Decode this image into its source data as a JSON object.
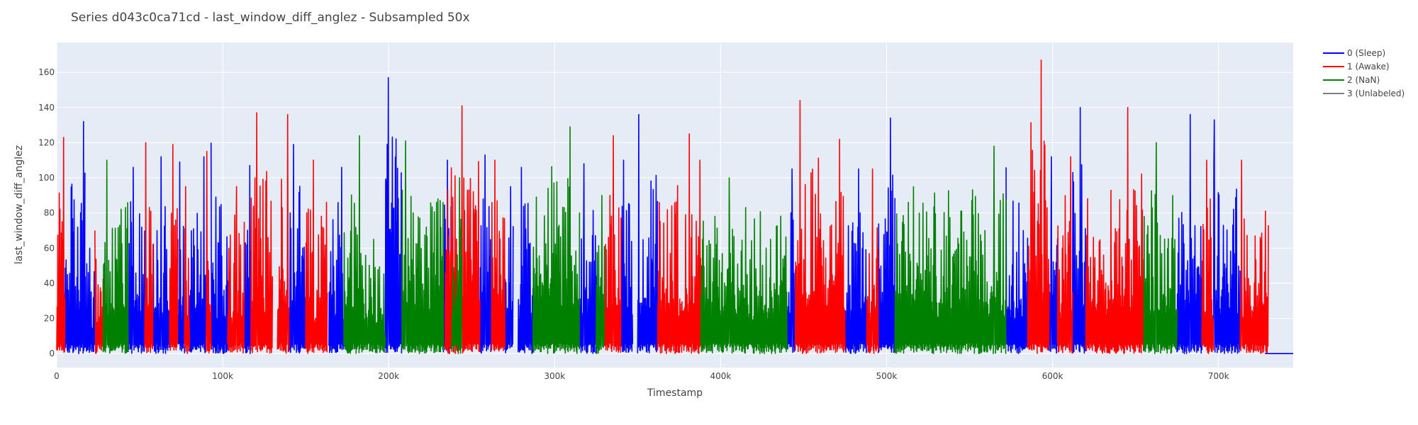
{
  "chart_data": {
    "type": "line",
    "title": "Series d043c0ca71cd - last_window_diff_anglez - Subsampled 50x",
    "xlabel": "Timestamp",
    "ylabel": "last_window_diff_anglez",
    "xlim": [
      0,
      745000
    ],
    "ylim": [
      -8,
      177
    ],
    "grid": true,
    "legend_position": "top-right, outside plot",
    "x_ticks": [
      {
        "value": 0,
        "label": "0"
      },
      {
        "value": 100000,
        "label": "100k"
      },
      {
        "value": 200000,
        "label": "200k"
      },
      {
        "value": 300000,
        "label": "300k"
      },
      {
        "value": 400000,
        "label": "400k"
      },
      {
        "value": 500000,
        "label": "500k"
      },
      {
        "value": 600000,
        "label": "600k"
      },
      {
        "value": 700000,
        "label": "700k"
      }
    ],
    "y_ticks": [
      {
        "value": 0,
        "label": "0"
      },
      {
        "value": 20,
        "label": "20"
      },
      {
        "value": 40,
        "label": "40"
      },
      {
        "value": 60,
        "label": "60"
      },
      {
        "value": 80,
        "label": "80"
      },
      {
        "value": 100,
        "label": "100"
      },
      {
        "value": 120,
        "label": "120"
      },
      {
        "value": 140,
        "label": "140"
      },
      {
        "value": 160,
        "label": "160"
      }
    ],
    "series": [
      {
        "name": "0 (Sleep)",
        "color": "#0000ff",
        "segments": [
          [
            5000,
            17000,
            132
          ],
          [
            17000,
            23000,
            60
          ],
          [
            43000,
            53000,
            106
          ],
          [
            58000,
            68000,
            112
          ],
          [
            73000,
            77000,
            109
          ],
          [
            80000,
            90000,
            112
          ],
          [
            93000,
            103000,
            120
          ],
          [
            113000,
            117000,
            107
          ],
          [
            140000,
            150000,
            119
          ],
          [
            164000,
            173000,
            106
          ],
          [
            198000,
            208000,
            157
          ],
          [
            233000,
            238000,
            110
          ],
          [
            255000,
            262000,
            113
          ],
          [
            270000,
            275000,
            95
          ],
          [
            278000,
            287000,
            106
          ],
          [
            315000,
            325000,
            108
          ],
          [
            340000,
            347000,
            110
          ],
          [
            350000,
            362000,
            136
          ],
          [
            440000,
            445000,
            105
          ],
          [
            475000,
            488000,
            105
          ],
          [
            495000,
            505000,
            134
          ],
          [
            572000,
            585000,
            106
          ],
          [
            598000,
            603000,
            112
          ],
          [
            612000,
            620000,
            140
          ],
          [
            675000,
            690000,
            136
          ],
          [
            697000,
            713000,
            133
          ],
          [
            728000,
            745000,
            0
          ]
        ]
      },
      {
        "name": "1 (Awake)",
        "color": "#ff0000",
        "segments": [
          [
            0,
            5000,
            123
          ],
          [
            23000,
            28000,
            70
          ],
          [
            53000,
            58000,
            120
          ],
          [
            68000,
            73000,
            119
          ],
          [
            77000,
            80000,
            95
          ],
          [
            90000,
            93000,
            115
          ],
          [
            103000,
            113000,
            95
          ],
          [
            117000,
            130000,
            137
          ],
          [
            133000,
            140000,
            136
          ],
          [
            150000,
            163000,
            110
          ],
          [
            234000,
            255000,
            141
          ],
          [
            262000,
            270000,
            110
          ],
          [
            330000,
            340000,
            124
          ],
          [
            362000,
            382000,
            125
          ],
          [
            382000,
            388000,
            110
          ],
          [
            445000,
            460000,
            144
          ],
          [
            460000,
            475000,
            122
          ],
          [
            488000,
            495000,
            105
          ],
          [
            585000,
            598000,
            167
          ],
          [
            603000,
            612000,
            112
          ],
          [
            620000,
            655000,
            140
          ],
          [
            690000,
            697000,
            110
          ],
          [
            713000,
            730000,
            110
          ]
        ]
      },
      {
        "name": "2 (NaN)",
        "color": "#008000",
        "segments": [
          [
            28000,
            43000,
            110
          ],
          [
            173000,
            185000,
            124
          ],
          [
            185000,
            198000,
            65
          ],
          [
            208000,
            233000,
            121
          ],
          [
            238000,
            244000,
            100
          ],
          [
            287000,
            315000,
            129
          ],
          [
            325000,
            330000,
            90
          ],
          [
            388000,
            440000,
            100
          ],
          [
            505000,
            572000,
            118
          ],
          [
            655000,
            675000,
            120
          ]
        ]
      },
      {
        "name": "3 (Unlabeled)",
        "color": "#808080",
        "segments": []
      }
    ]
  }
}
